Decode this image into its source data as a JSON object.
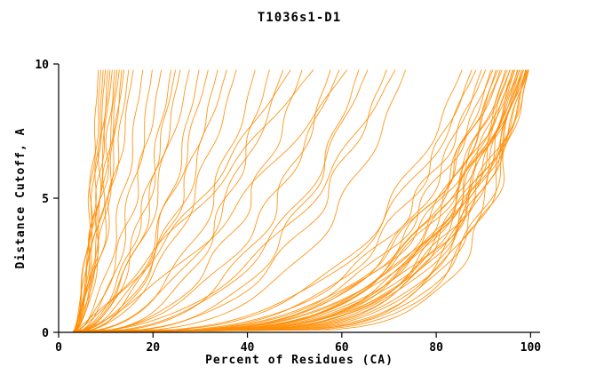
{
  "chart_data": {
    "type": "line",
    "title": "T1036s1-D1",
    "xlabel": "Percent of Residues (CA)",
    "ylabel": "Distance Cutoff, A",
    "xlim": [
      0,
      102
    ],
    "ylim": [
      0,
      10
    ],
    "x_ticks": [
      0,
      20,
      40,
      60,
      80,
      100
    ],
    "y_ticks": [
      0,
      5,
      10
    ],
    "grid": false,
    "legend": "none",
    "line_color": "#ff8c00",
    "axis_color": "#000000",
    "description": "Approximately 75 superimposed orange model-accuracy curves: cumulative percent of CA residues (x) within a given distance cutoff in Angstroms (y). Curves start near x=3 at y=0; a poor cluster tops out at 8-16%, a middle cluster at 18-40%, scattered curves at 42-74%, and a dense good cluster reaching 86-100% at the 10 A cutoff.",
    "curve_format": "[end_percent_at_10A, shape_exponent, wobble_amplitude, wobble_phase, wobble_frequency]",
    "curves": [
      [
        8.5,
        0.55,
        0.5,
        0.3,
        1.1
      ],
      [
        9,
        0.6,
        0.7,
        1.2,
        0.9
      ],
      [
        9.5,
        0.5,
        0.4,
        2.1,
        1.3
      ],
      [
        10,
        0.65,
        0.6,
        3.0,
        0.8
      ],
      [
        10.5,
        0.58,
        0.8,
        4.2,
        1.0
      ],
      [
        11,
        0.62,
        0.5,
        5.1,
        1.2
      ],
      [
        11.5,
        0.7,
        0.6,
        0.7,
        0.7
      ],
      [
        12,
        0.55,
        0.9,
        1.8,
        1.1
      ],
      [
        12.5,
        0.6,
        0.5,
        2.6,
        0.9
      ],
      [
        13,
        0.68,
        0.7,
        3.5,
        1.2
      ],
      [
        13.5,
        0.52,
        0.6,
        4.4,
        1.0
      ],
      [
        14,
        0.64,
        0.8,
        5.3,
        0.8
      ],
      [
        15,
        0.6,
        0.7,
        0.5,
        1.15
      ],
      [
        16,
        0.66,
        0.9,
        1.4,
        0.95
      ],
      [
        18,
        0.5,
        0.8,
        2.2,
        1.0
      ],
      [
        20,
        0.45,
        1.0,
        3.1,
        0.85
      ],
      [
        22,
        0.55,
        0.9,
        4.0,
        1.1
      ],
      [
        24,
        0.42,
        1.1,
        4.9,
        0.9
      ],
      [
        25,
        0.5,
        0.8,
        5.8,
        1.2
      ],
      [
        26,
        0.47,
        1.0,
        0.4,
        1.0
      ],
      [
        28,
        0.52,
        1.2,
        1.3,
        0.8
      ],
      [
        30,
        0.4,
        0.9,
        2.2,
        1.05
      ],
      [
        32,
        0.48,
        1.1,
        3.1,
        0.95
      ],
      [
        34,
        0.44,
        1.0,
        4.0,
        1.15
      ],
      [
        36,
        0.5,
        1.2,
        4.9,
        0.9
      ],
      [
        38,
        0.46,
        1.0,
        5.8,
        1.0
      ],
      [
        42,
        0.4,
        1.3,
        0.6,
        0.9
      ],
      [
        45,
        0.35,
        1.2,
        1.5,
        1.1
      ],
      [
        48,
        0.45,
        1.4,
        2.4,
        0.8
      ],
      [
        50,
        0.8,
        1.0,
        3.3,
        1.0
      ],
      [
        52,
        0.38,
        1.3,
        4.2,
        1.2
      ],
      [
        55,
        0.9,
        1.1,
        5.1,
        0.9
      ],
      [
        58,
        0.33,
        1.5,
        0.2,
        1.0
      ],
      [
        60,
        0.42,
        1.2,
        1.1,
        1.1
      ],
      [
        62,
        0.7,
        1.3,
        2.0,
        0.85
      ],
      [
        64,
        0.3,
        1.4,
        2.9,
        1.05
      ],
      [
        66,
        0.38,
        1.2,
        3.8,
        0.95
      ],
      [
        70,
        0.33,
        1.5,
        4.7,
        1.1
      ],
      [
        72,
        0.45,
        1.3,
        5.6,
        0.9
      ],
      [
        74,
        0.3,
        1.2,
        0.9,
        1.0
      ],
      [
        86,
        0.28,
        1.5,
        1.7,
        0.9
      ],
      [
        88,
        0.25,
        1.4,
        2.5,
        1.1
      ],
      [
        89,
        0.3,
        1.6,
        3.3,
        0.8
      ],
      [
        90,
        0.22,
        1.3,
        4.1,
        1.0
      ],
      [
        91,
        0.27,
        1.5,
        4.9,
        1.2
      ],
      [
        92,
        0.2,
        1.4,
        5.7,
        0.9
      ],
      [
        92.5,
        0.25,
        1.6,
        0.5,
        1.05
      ],
      [
        93,
        0.18,
        1.3,
        1.3,
        0.95
      ],
      [
        93.5,
        0.24,
        1.5,
        2.1,
        1.15
      ],
      [
        94,
        0.21,
        1.4,
        2.9,
        0.85
      ],
      [
        94.5,
        0.26,
        1.6,
        3.7,
        1.0
      ],
      [
        95,
        0.17,
        1.3,
        4.5,
        1.1
      ],
      [
        95.5,
        0.23,
        1.5,
        5.3,
        0.9
      ],
      [
        96,
        0.19,
        1.4,
        0.1,
        1.0
      ],
      [
        96.2,
        0.25,
        1.2,
        0.9,
        1.2
      ],
      [
        96.5,
        0.16,
        1.5,
        1.7,
        0.8
      ],
      [
        96.8,
        0.22,
        1.3,
        2.5,
        1.05
      ],
      [
        97,
        0.18,
        1.6,
        3.3,
        0.95
      ],
      [
        97.2,
        0.24,
        1.4,
        4.1,
        1.1
      ],
      [
        97.5,
        0.15,
        1.2,
        4.9,
        0.9
      ],
      [
        97.8,
        0.21,
        1.5,
        5.7,
        1.0
      ],
      [
        98,
        0.17,
        1.3,
        0.4,
        1.15
      ],
      [
        98.2,
        0.23,
        1.6,
        1.2,
        0.85
      ],
      [
        98.4,
        0.14,
        1.4,
        2.0,
        1.0
      ],
      [
        98.6,
        0.2,
        1.2,
        2.8,
        1.1
      ],
      [
        98.8,
        0.16,
        1.5,
        3.6,
        0.9
      ],
      [
        99,
        0.22,
        1.3,
        4.4,
        1.05
      ],
      [
        99.2,
        0.13,
        1.4,
        5.2,
        0.95
      ],
      [
        99.4,
        0.19,
        1.6,
        6.0,
        1.1
      ],
      [
        99.5,
        0.15,
        1.2,
        0.7,
        0.9
      ],
      [
        99.6,
        0.21,
        1.5,
        1.5,
        1.0
      ],
      [
        99.7,
        0.12,
        1.3,
        2.3,
        1.15
      ],
      [
        99.8,
        0.18,
        1.4,
        3.1,
        0.85
      ],
      [
        99.9,
        0.14,
        1.2,
        3.9,
        1.0
      ],
      [
        100,
        0.2,
        1.5,
        4.7,
        1.1
      ]
    ]
  }
}
